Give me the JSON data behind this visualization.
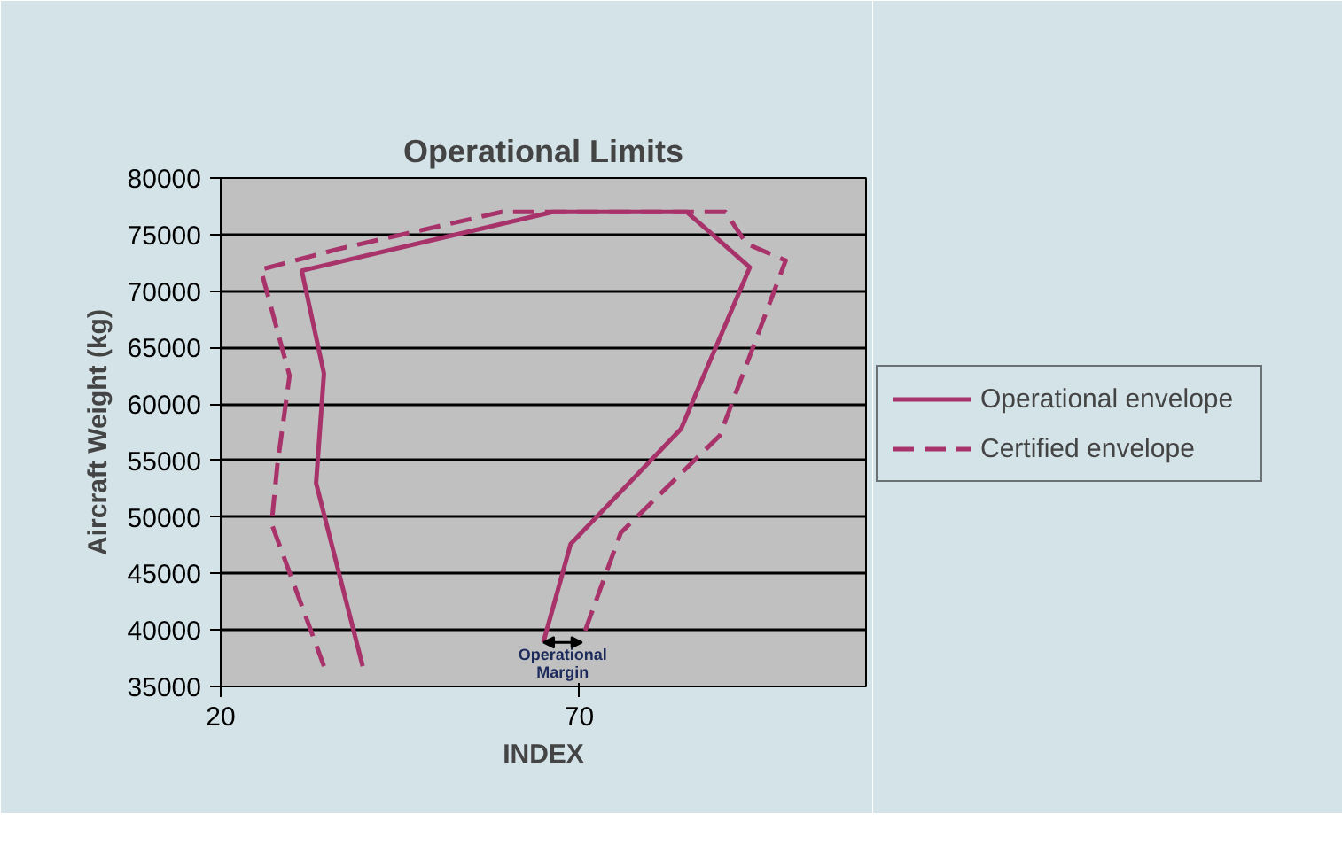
{
  "chart_data": {
    "type": "line",
    "title": "Operational Limits",
    "xlabel": "INDEX",
    "ylabel": "Aircraft Weight (kg)",
    "xlim": [
      20,
      110
    ],
    "xticks": [
      20,
      70
    ],
    "ylim": [
      35000,
      80000
    ],
    "yticks": [
      35000,
      40000,
      45000,
      50000,
      55000,
      60000,
      65000,
      70000,
      75000,
      80000
    ],
    "grid": "y",
    "legend": "right",
    "series": [
      {
        "name": "Operational envelope",
        "color": "#a8336b",
        "line_style": "solid",
        "x": [
          39.8,
          33.3,
          34.4,
          31.3,
          66.3,
          85,
          93.8,
          84.2,
          68.8,
          65
        ],
        "values": [
          36800,
          53000,
          62700,
          71800,
          77000,
          77000,
          72100,
          57800,
          47600,
          38900
        ]
      },
      {
        "name": "Certified envelope",
        "color": "#a8336b",
        "line_style": "dashed",
        "x": [
          34.4,
          27.1,
          27.9,
          29.6,
          25.6,
          36.3,
          59.2,
          90.4,
          93.3,
          98.8,
          89.6,
          85.4,
          75.8,
          70.4
        ],
        "values": [
          36800,
          49400,
          54600,
          62500,
          71900,
          73700,
          77000,
          77000,
          74200,
          72700,
          57200,
          54600,
          48600,
          39200
        ]
      }
    ],
    "annotations": [
      "Operational\nMargin"
    ]
  }
}
